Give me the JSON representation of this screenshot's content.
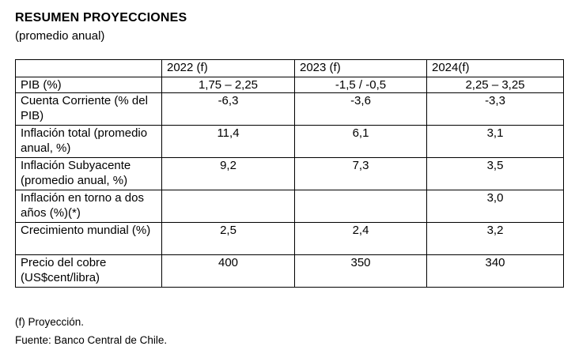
{
  "title": "RESUMEN PROYECCIONES",
  "subtitle": "(promedio anual)",
  "table": {
    "headers": [
      "",
      "2022 (f)",
      "2023 (f)",
      "2024(f)"
    ],
    "rows": [
      {
        "label": "PIB (%)",
        "values": [
          "1,75 – 2,25",
          "-1,5 / -0,5",
          "2,25 – 3,25"
        ]
      },
      {
        "label": "Cuenta Corriente (% del PIB)",
        "values": [
          "-6,3",
          "-3,6",
          "-3,3"
        ]
      },
      {
        "label": "Inflación total (promedio anual, %)",
        "values": [
          "11,4",
          "6,1",
          "3,1"
        ]
      },
      {
        "label": "Inflación Subyacente (promedio anual, %)",
        "values": [
          "9,2",
          "7,3",
          "3,5"
        ]
      },
      {
        "label": "Inflación en torno a dos años (%)(*)",
        "values": [
          "",
          "",
          "3,0"
        ]
      },
      {
        "label": "Crecimiento mundial (%)",
        "values": [
          "2,5",
          "2,4",
          "3,2"
        ]
      },
      {
        "label": "Precio del cobre (US$cent/libra)",
        "values": [
          "400",
          "350",
          "340"
        ]
      }
    ]
  },
  "footnotes": {
    "note": "(f) Proyección.",
    "source": "Fuente: Banco Central de Chile."
  }
}
